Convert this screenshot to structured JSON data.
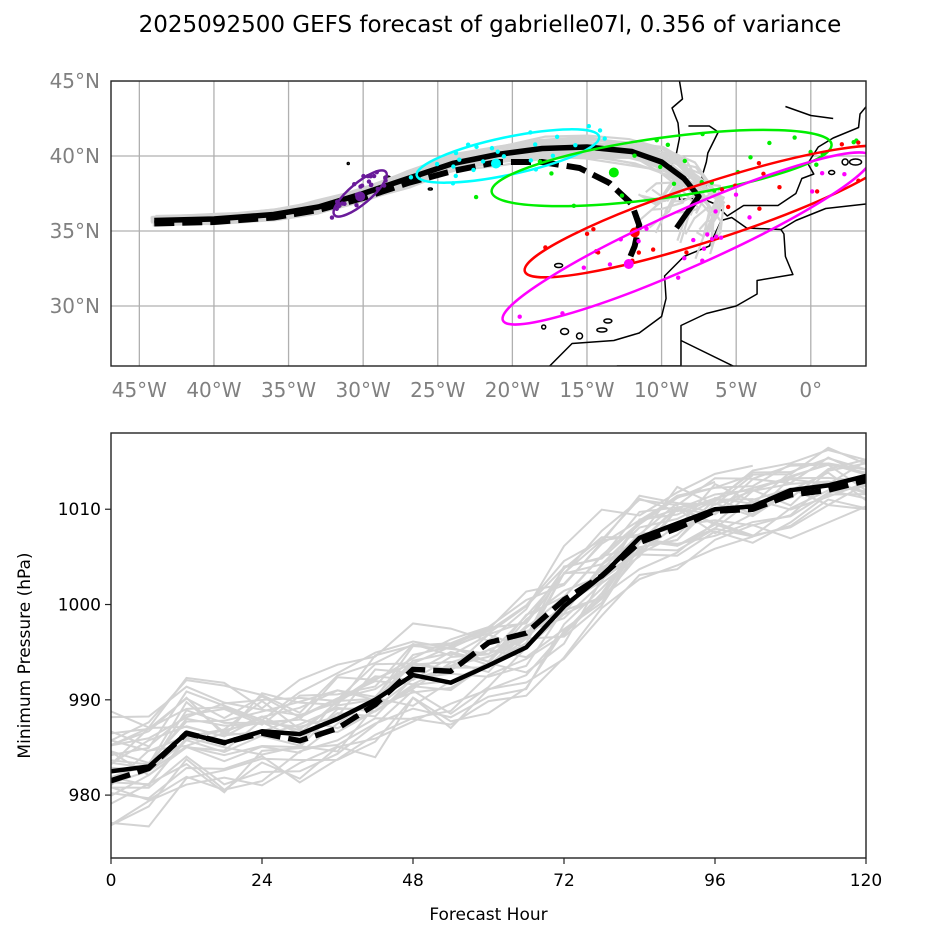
{
  "title": "2025092500 GEFS forecast of gabrielle07l, 0.356 of variance",
  "chart_data": [
    {
      "type": "line",
      "name": "track-map",
      "title": "2025092500 GEFS forecast of gabrielle07l, 0.356 of variance",
      "xlabel": "",
      "ylabel": "",
      "xlim": [
        -46.9,
        3.7
      ],
      "ylim": [
        26,
        45
      ],
      "grid": true,
      "x_ticks": [
        -45,
        -40,
        -35,
        -30,
        -25,
        -20,
        -15,
        -10,
        -5,
        0
      ],
      "x_tick_labels": [
        "45°W",
        "40°W",
        "35°W",
        "30°W",
        "25°W",
        "20°W",
        "15°W",
        "10°W",
        "5°W",
        "0°"
      ],
      "y_ticks": [
        45,
        40,
        35,
        30
      ],
      "y_tick_labels": [
        "45°N",
        "40°N",
        "35°N",
        "30°N"
      ],
      "tick_label_color": "#808080",
      "mean_track_solid": {
        "lon": [
          -44,
          -40,
          -36,
          -33,
          -30,
          -27,
          -24,
          -21,
          -18,
          -15,
          -12,
          -10,
          -8.5,
          -7.5,
          -8.3,
          -9
        ],
        "lat": [
          35.7,
          35.8,
          36.1,
          36.6,
          37.5,
          38.5,
          39.5,
          40.1,
          40.5,
          40.6,
          40.3,
          39.6,
          38.5,
          37.3,
          36.2,
          35.2
        ]
      },
      "mean_track_dashed": {
        "lon": [
          -44,
          -40,
          -36,
          -33,
          -30,
          -27,
          -24,
          -21,
          -18,
          -15.5,
          -13.5,
          -12,
          -11.5,
          -11.8,
          -12.3
        ],
        "lat": [
          35.5,
          35.6,
          35.9,
          36.4,
          37.2,
          38.2,
          39.0,
          39.6,
          39.6,
          39.2,
          38.2,
          36.8,
          35.4,
          34.0,
          32.8
        ]
      },
      "ensemble_member_count": 30,
      "ellipses": [
        {
          "name": "purple",
          "color": "#6a1b9a",
          "center": [
            -30.2,
            37.5
          ],
          "width_deg": 4.5,
          "height_deg": 1.4,
          "angle_deg": 40
        },
        {
          "name": "cyan",
          "color": "#00ffff",
          "center": [
            -20.3,
            40.0
          ],
          "width_deg": 12.5,
          "height_deg": 2.5,
          "angle_deg": 12
        },
        {
          "name": "green",
          "color": "#00ee00",
          "center": [
            -10.0,
            39.2
          ],
          "width_deg": 23.0,
          "height_deg": 4.0,
          "angle_deg": 8
        },
        {
          "name": "red",
          "color": "#ff0000",
          "center": [
            -6.8,
            36.3
          ],
          "width_deg": 26.0,
          "height_deg": 3.8,
          "angle_deg": 18
        },
        {
          "name": "magenta",
          "color": "#ff00ff",
          "center": [
            -8.3,
            34.5
          ],
          "width_deg": 27.0,
          "height_deg": 3.8,
          "angle_deg": 24
        }
      ],
      "ellipse_means": [
        {
          "color": "#6a1b9a",
          "lon": -30.2,
          "lat": 37.3
        },
        {
          "color": "#00ffff",
          "lon": -21.1,
          "lat": 39.5
        },
        {
          "color": "#00ee00",
          "lon": -13.2,
          "lat": 38.9
        },
        {
          "color": "#ff0000",
          "lon": -11.8,
          "lat": 34.9
        },
        {
          "color": "#ff00ff",
          "lon": -12.2,
          "lat": 32.8
        }
      ]
    },
    {
      "type": "line",
      "name": "pressure-plot",
      "title": "",
      "xlabel": "Forecast Hour",
      "ylabel": "Minimum Pressure (hPa)",
      "xlim": [
        0,
        120
      ],
      "ylim": [
        973.4,
        1018
      ],
      "grid": false,
      "x_ticks": [
        0,
        24,
        48,
        72,
        96,
        120
      ],
      "y_ticks": [
        980,
        990,
        1000,
        1010
      ],
      "x": [
        0,
        6,
        12,
        18,
        24,
        30,
        36,
        42,
        48,
        54,
        60,
        66,
        72,
        78,
        84,
        90,
        96,
        102,
        108,
        114,
        120
      ],
      "series": [
        {
          "name": "mean-solid",
          "style": "solid",
          "color": "#000000",
          "values": [
            982.5,
            983.0,
            986.5,
            985.5,
            986.7,
            986.4,
            988.0,
            990.0,
            992.6,
            991.8,
            993.6,
            995.5,
            999.8,
            1003.0,
            1007.0,
            1008.5,
            1010.0,
            1010.3,
            1012.0,
            1012.5,
            1013.5
          ]
        },
        {
          "name": "mean-dashed",
          "style": "dashed",
          "color": "#000000",
          "values": [
            981.5,
            982.8,
            986.5,
            985.5,
            986.5,
            985.7,
            987.0,
            989.5,
            993.2,
            993.0,
            996.0,
            997.0,
            1000.5,
            1003.0,
            1006.5,
            1008.0,
            1009.8,
            1010.0,
            1011.5,
            1012.0,
            1013.0
          ]
        }
      ],
      "ensemble_color": "#d3d3d3",
      "ensemble_member_count": 30
    }
  ]
}
